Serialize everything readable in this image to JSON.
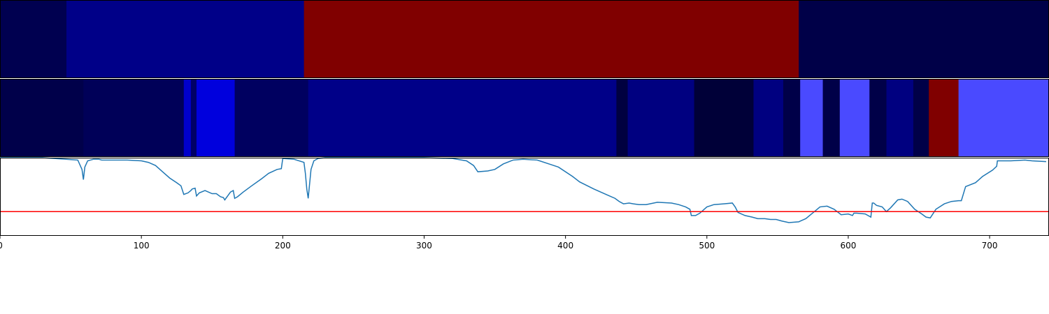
{
  "chart_data": [
    {
      "type": "heatmap",
      "title": "",
      "xlim": [
        0,
        742
      ],
      "segments": [
        {
          "start": 0,
          "end": 47,
          "color": "#000050"
        },
        {
          "start": 47,
          "end": 215,
          "color": "#000088"
        },
        {
          "start": 215,
          "end": 565,
          "color": "#800000"
        },
        {
          "start": 565,
          "end": 742,
          "color": "#000048"
        }
      ]
    },
    {
      "type": "heatmap",
      "title": "",
      "xlim": [
        0,
        742
      ],
      "segments": [
        {
          "start": 0,
          "end": 59,
          "color": "#00004a"
        },
        {
          "start": 59,
          "end": 130,
          "color": "#000058"
        },
        {
          "start": 130,
          "end": 135,
          "color": "#0000cc"
        },
        {
          "start": 135,
          "end": 139,
          "color": "#000066"
        },
        {
          "start": 139,
          "end": 166,
          "color": "#0000dd"
        },
        {
          "start": 166,
          "end": 218,
          "color": "#000060"
        },
        {
          "start": 218,
          "end": 436,
          "color": "#000088"
        },
        {
          "start": 436,
          "end": 444,
          "color": "#000040"
        },
        {
          "start": 444,
          "end": 491,
          "color": "#000080"
        },
        {
          "start": 491,
          "end": 533,
          "color": "#000038"
        },
        {
          "start": 533,
          "end": 554,
          "color": "#000080"
        },
        {
          "start": 554,
          "end": 566,
          "color": "#000048"
        },
        {
          "start": 566,
          "end": 582,
          "color": "#4a4aff"
        },
        {
          "start": 582,
          "end": 594,
          "color": "#000048"
        },
        {
          "start": 594,
          "end": 615,
          "color": "#4a4aff"
        },
        {
          "start": 615,
          "end": 627,
          "color": "#000048"
        },
        {
          "start": 627,
          "end": 646,
          "color": "#000080"
        },
        {
          "start": 646,
          "end": 657,
          "color": "#000048"
        },
        {
          "start": 657,
          "end": 678,
          "color": "#800000"
        },
        {
          "start": 678,
          "end": 742,
          "color": "#4a4aff"
        }
      ]
    },
    {
      "type": "line",
      "title": "",
      "xlabel": "",
      "ylabel": "",
      "xlim": [
        0,
        742
      ],
      "ylim": [
        0,
        1
      ],
      "xticks": [
        0,
        100,
        200,
        300,
        400,
        500,
        600,
        700
      ],
      "grid": false,
      "line_color": "#1f77b4",
      "threshold": {
        "value": 0.31,
        "color": "#ff0000"
      },
      "x": [
        0,
        30,
        55,
        58,
        59,
        60,
        62,
        66,
        70,
        72,
        90,
        100,
        105,
        110,
        115,
        120,
        125,
        128,
        130,
        133,
        135,
        136,
        138,
        139,
        141,
        145,
        150,
        153,
        156,
        158,
        159,
        163,
        165,
        166,
        168,
        172,
        178,
        185,
        190,
        196,
        199,
        200,
        208,
        215,
        216,
        217,
        218,
        220,
        222,
        225,
        230,
        300,
        320,
        330,
        335,
        338,
        345,
        350,
        356,
        363,
        370,
        380,
        390,
        395,
        405,
        410,
        420,
        425,
        430,
        435,
        438,
        441,
        445,
        448,
        452,
        457,
        465,
        475,
        480,
        485,
        488,
        489,
        492,
        495,
        500,
        505,
        512,
        518,
        520,
        522,
        527,
        532,
        536,
        541,
        545,
        549,
        553,
        558,
        565,
        570,
        576,
        580,
        585,
        590,
        595,
        600,
        603,
        604,
        606,
        612,
        616,
        617,
        618,
        620,
        624,
        627,
        630,
        635,
        638,
        642,
        647,
        652,
        655,
        658,
        662,
        668,
        673,
        678,
        680,
        683,
        690,
        695,
        702,
        705,
        705.5,
        715,
        725,
        730,
        740
      ],
      "y": [
        1.0,
        1.0,
        0.97,
        0.85,
        0.72,
        0.88,
        0.96,
        0.98,
        0.98,
        0.97,
        0.97,
        0.96,
        0.94,
        0.9,
        0.82,
        0.74,
        0.68,
        0.64,
        0.53,
        0.55,
        0.58,
        0.6,
        0.61,
        0.51,
        0.55,
        0.58,
        0.54,
        0.54,
        0.5,
        0.49,
        0.46,
        0.56,
        0.58,
        0.48,
        0.5,
        0.56,
        0.64,
        0.73,
        0.8,
        0.85,
        0.86,
        0.99,
        0.98,
        0.94,
        0.8,
        0.6,
        0.48,
        0.85,
        0.96,
        0.99,
        1.0,
        1.0,
        0.99,
        0.96,
        0.9,
        0.82,
        0.83,
        0.85,
        0.92,
        0.97,
        0.98,
        0.97,
        0.91,
        0.88,
        0.76,
        0.69,
        0.6,
        0.56,
        0.52,
        0.48,
        0.44,
        0.41,
        0.42,
        0.41,
        0.4,
        0.4,
        0.43,
        0.42,
        0.4,
        0.37,
        0.34,
        0.26,
        0.26,
        0.29,
        0.37,
        0.4,
        0.41,
        0.42,
        0.37,
        0.3,
        0.26,
        0.24,
        0.22,
        0.22,
        0.21,
        0.21,
        0.19,
        0.17,
        0.18,
        0.22,
        0.31,
        0.37,
        0.38,
        0.34,
        0.27,
        0.28,
        0.26,
        0.29,
        0.29,
        0.28,
        0.24,
        0.42,
        0.42,
        0.39,
        0.37,
        0.31,
        0.36,
        0.46,
        0.47,
        0.44,
        0.34,
        0.28,
        0.24,
        0.23,
        0.34,
        0.41,
        0.44,
        0.45,
        0.45,
        0.63,
        0.68,
        0.76,
        0.84,
        0.89,
        0.96,
        0.96,
        0.97,
        0.96,
        0.95
      ]
    }
  ]
}
